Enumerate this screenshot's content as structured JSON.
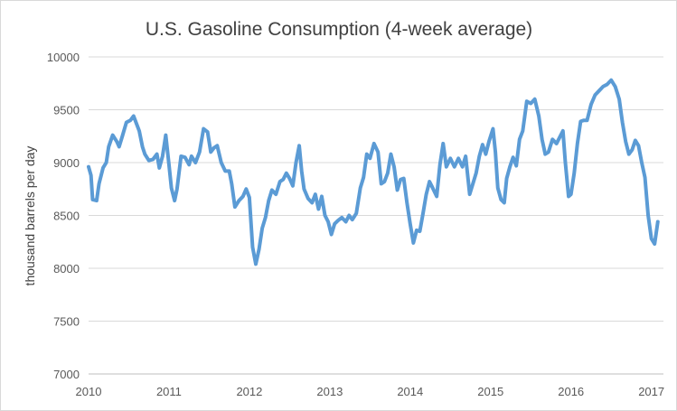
{
  "chart_data": {
    "type": "line",
    "title": "U.S. Gasoline Consumption (4-week average)",
    "xlabel": "",
    "ylabel": "thousand barrels per day",
    "xlim": [
      2010,
      2017.15
    ],
    "ylim": [
      7000,
      10000
    ],
    "x_ticks": [
      "2010",
      "2011",
      "2012",
      "2013",
      "2014",
      "2015",
      "2016",
      "2017"
    ],
    "y_ticks": [
      "7000",
      "7500",
      "8000",
      "8500",
      "9000",
      "9500",
      "10000"
    ],
    "grid": true,
    "legend": "none",
    "series": [
      {
        "color": "#5b9bd5",
        "points": [
          [
            2010.0,
            8960
          ],
          [
            2010.03,
            8880
          ],
          [
            2010.05,
            8650
          ],
          [
            2010.1,
            8640
          ],
          [
            2010.13,
            8800
          ],
          [
            2010.18,
            8950
          ],
          [
            2010.22,
            9000
          ],
          [
            2010.25,
            9150
          ],
          [
            2010.3,
            9260
          ],
          [
            2010.35,
            9200
          ],
          [
            2010.38,
            9150
          ],
          [
            2010.42,
            9250
          ],
          [
            2010.47,
            9380
          ],
          [
            2010.52,
            9400
          ],
          [
            2010.56,
            9440
          ],
          [
            2010.6,
            9360
          ],
          [
            2010.63,
            9300
          ],
          [
            2010.67,
            9150
          ],
          [
            2010.7,
            9080
          ],
          [
            2010.75,
            9020
          ],
          [
            2010.8,
            9030
          ],
          [
            2010.85,
            9080
          ],
          [
            2010.88,
            8950
          ],
          [
            2010.92,
            9060
          ],
          [
            2010.96,
            9260
          ],
          [
            2011.0,
            8980
          ],
          [
            2011.03,
            8760
          ],
          [
            2011.07,
            8640
          ],
          [
            2011.1,
            8750
          ],
          [
            2011.15,
            9060
          ],
          [
            2011.2,
            9050
          ],
          [
            2011.25,
            8980
          ],
          [
            2011.28,
            9060
          ],
          [
            2011.33,
            9000
          ],
          [
            2011.38,
            9100
          ],
          [
            2011.43,
            9320
          ],
          [
            2011.48,
            9290
          ],
          [
            2011.52,
            9100
          ],
          [
            2011.56,
            9140
          ],
          [
            2011.6,
            9160
          ],
          [
            2011.65,
            9000
          ],
          [
            2011.7,
            8920
          ],
          [
            2011.75,
            8920
          ],
          [
            2011.78,
            8800
          ],
          [
            2011.82,
            8580
          ],
          [
            2011.87,
            8640
          ],
          [
            2011.92,
            8680
          ],
          [
            2011.96,
            8750
          ],
          [
            2012.0,
            8670
          ],
          [
            2012.04,
            8200
          ],
          [
            2012.08,
            8040
          ],
          [
            2012.12,
            8180
          ],
          [
            2012.16,
            8380
          ],
          [
            2012.2,
            8480
          ],
          [
            2012.24,
            8640
          ],
          [
            2012.28,
            8740
          ],
          [
            2012.33,
            8700
          ],
          [
            2012.38,
            8820
          ],
          [
            2012.42,
            8840
          ],
          [
            2012.46,
            8900
          ],
          [
            2012.5,
            8850
          ],
          [
            2012.54,
            8780
          ],
          [
            2012.58,
            9000
          ],
          [
            2012.62,
            9160
          ],
          [
            2012.65,
            8920
          ],
          [
            2012.68,
            8750
          ],
          [
            2012.73,
            8660
          ],
          [
            2012.78,
            8620
          ],
          [
            2012.82,
            8700
          ],
          [
            2012.86,
            8560
          ],
          [
            2012.9,
            8680
          ],
          [
            2012.94,
            8500
          ],
          [
            2012.98,
            8440
          ],
          [
            2013.02,
            8320
          ],
          [
            2013.06,
            8420
          ],
          [
            2013.1,
            8450
          ],
          [
            2013.15,
            8480
          ],
          [
            2013.2,
            8440
          ],
          [
            2013.24,
            8500
          ],
          [
            2013.28,
            8460
          ],
          [
            2013.33,
            8520
          ],
          [
            2013.38,
            8760
          ],
          [
            2013.42,
            8860
          ],
          [
            2013.46,
            9080
          ],
          [
            2013.5,
            9040
          ],
          [
            2013.55,
            9180
          ],
          [
            2013.6,
            9100
          ],
          [
            2013.64,
            8800
          ],
          [
            2013.68,
            8820
          ],
          [
            2013.72,
            8900
          ],
          [
            2013.76,
            9080
          ],
          [
            2013.8,
            8960
          ],
          [
            2013.84,
            8740
          ],
          [
            2013.88,
            8840
          ],
          [
            2013.92,
            8850
          ],
          [
            2013.96,
            8620
          ],
          [
            2014.0,
            8420
          ],
          [
            2014.04,
            8240
          ],
          [
            2014.08,
            8360
          ],
          [
            2014.12,
            8350
          ],
          [
            2014.16,
            8520
          ],
          [
            2014.2,
            8700
          ],
          [
            2014.24,
            8820
          ],
          [
            2014.28,
            8760
          ],
          [
            2014.33,
            8680
          ],
          [
            2014.37,
            8980
          ],
          [
            2014.41,
            9180
          ],
          [
            2014.45,
            8960
          ],
          [
            2014.5,
            9040
          ],
          [
            2014.55,
            8960
          ],
          [
            2014.6,
            9040
          ],
          [
            2014.65,
            8960
          ],
          [
            2014.69,
            9060
          ],
          [
            2014.74,
            8700
          ],
          [
            2014.78,
            8800
          ],
          [
            2014.82,
            8900
          ],
          [
            2014.86,
            9060
          ],
          [
            2014.9,
            9170
          ],
          [
            2014.94,
            9080
          ],
          [
            2014.98,
            9200
          ],
          [
            2015.03,
            9320
          ],
          [
            2015.06,
            9100
          ],
          [
            2015.09,
            8760
          ],
          [
            2015.13,
            8650
          ],
          [
            2015.17,
            8620
          ],
          [
            2015.2,
            8850
          ],
          [
            2015.24,
            8960
          ],
          [
            2015.28,
            9050
          ],
          [
            2015.32,
            8970
          ],
          [
            2015.36,
            9220
          ],
          [
            2015.4,
            9300
          ],
          [
            2015.45,
            9580
          ],
          [
            2015.5,
            9560
          ],
          [
            2015.55,
            9600
          ],
          [
            2015.6,
            9440
          ],
          [
            2015.64,
            9220
          ],
          [
            2015.68,
            9080
          ],
          [
            2015.72,
            9100
          ],
          [
            2015.77,
            9220
          ],
          [
            2015.82,
            9180
          ],
          [
            2015.86,
            9240
          ],
          [
            2015.9,
            9300
          ],
          [
            2015.93,
            9000
          ],
          [
            2015.97,
            8680
          ],
          [
            2016.0,
            8700
          ],
          [
            2016.04,
            8900
          ],
          [
            2016.08,
            9180
          ],
          [
            2016.12,
            9390
          ],
          [
            2016.16,
            9400
          ],
          [
            2016.2,
            9400
          ],
          [
            2016.25,
            9550
          ],
          [
            2016.3,
            9640
          ],
          [
            2016.35,
            9680
          ],
          [
            2016.4,
            9720
          ],
          [
            2016.45,
            9740
          ],
          [
            2016.5,
            9780
          ],
          [
            2016.55,
            9720
          ],
          [
            2016.6,
            9600
          ],
          [
            2016.64,
            9380
          ],
          [
            2016.68,
            9200
          ],
          [
            2016.72,
            9080
          ],
          [
            2016.76,
            9120
          ],
          [
            2016.8,
            9210
          ],
          [
            2016.84,
            9160
          ],
          [
            2016.88,
            9000
          ],
          [
            2016.92,
            8860
          ],
          [
            2016.96,
            8500
          ],
          [
            2017.0,
            8280
          ],
          [
            2017.04,
            8230
          ],
          [
            2017.08,
            8440
          ]
        ]
      }
    ]
  }
}
